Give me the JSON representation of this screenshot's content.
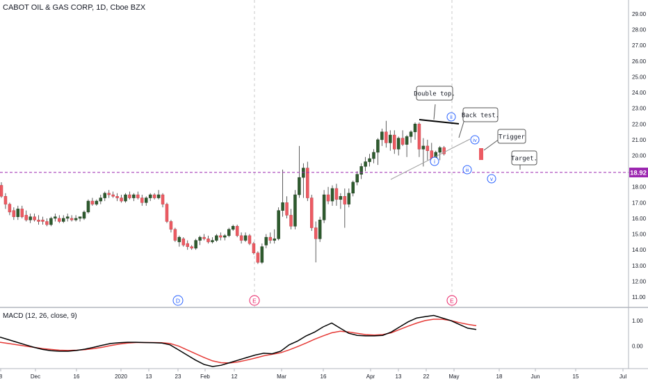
{
  "header": {
    "symbol": "CABOT OIL & GAS CORP, 1D, Cboe BZX"
  },
  "price_panel": {
    "price_tag": "18.92",
    "y_ticks": [
      "11.00",
      "12.00",
      "13.00",
      "14.00",
      "15.00",
      "16.00",
      "17.00",
      "18.00",
      "19.00",
      "20.00",
      "21.00",
      "22.00",
      "23.00",
      "24.00",
      "25.00",
      "26.00",
      "27.00",
      "28.00",
      "29.00"
    ],
    "annotations": [
      "Double top.",
      "Back test.",
      "Trigger",
      "Target."
    ],
    "wave_labels": [
      "i",
      "ii",
      "iii",
      "iv",
      "v"
    ],
    "event_markers": [
      {
        "label": "D",
        "x": "2020-01-22",
        "color": "#2962ff"
      },
      {
        "label": "E",
        "x": "2020-02-21",
        "color": "#e91e63"
      },
      {
        "label": "E",
        "x": "2020-04-30",
        "color": "#e91e63"
      }
    ]
  },
  "macd_panel": {
    "title": "MACD (12, 26, close, 9)",
    "y_ticks": [
      "1.00",
      "0.00"
    ]
  },
  "x_axis": {
    "ticks": [
      "8",
      "Dec",
      "16",
      "2020",
      "13",
      "23",
      "Feb",
      "12",
      "Mar",
      "16",
      "Apr",
      "13",
      "22",
      "May",
      "18",
      "Jun",
      "15",
      "Jul"
    ]
  },
  "colors": {
    "up": "#2e5b2e",
    "down": "#ec5b63",
    "macd_line": "#000000",
    "signal_line": "#e53935",
    "horizontal_line": "#9c27b0",
    "wave_label": "#2962ff",
    "marker_d": "#2962ff",
    "marker_e": "#e91e63"
  },
  "chart_data": {
    "type": "candlestick",
    "title": "CABOT OIL & GAS CORP, 1D, Cboe BZX",
    "price_range": [
      10.5,
      29.5
    ],
    "horizontal_line": 18.92,
    "candles": [
      [
        18.1,
        18.3,
        17.3,
        17.4
      ],
      [
        17.4,
        17.6,
        16.6,
        16.9
      ],
      [
        16.9,
        17.0,
        16.2,
        16.4
      ],
      [
        16.5,
        16.7,
        15.9,
        16.1
      ],
      [
        16.1,
        16.8,
        15.9,
        16.6
      ],
      [
        16.6,
        16.8,
        16.0,
        16.1
      ],
      [
        16.2,
        16.5,
        15.8,
        15.9
      ],
      [
        15.9,
        16.3,
        15.7,
        16.1
      ],
      [
        16.1,
        16.3,
        15.8,
        15.9
      ],
      [
        15.9,
        16.2,
        15.6,
        15.8
      ],
      [
        15.9,
        16.1,
        15.6,
        15.8
      ],
      [
        15.8,
        16.0,
        15.5,
        15.6
      ],
      [
        15.6,
        16.1,
        15.5,
        16.0
      ],
      [
        16.0,
        16.3,
        15.8,
        16.1
      ],
      [
        16.0,
        16.2,
        15.7,
        15.8
      ],
      [
        15.8,
        16.2,
        15.7,
        16.0
      ],
      [
        16.0,
        16.3,
        15.8,
        16.1
      ],
      [
        16.0,
        16.2,
        15.8,
        15.9
      ],
      [
        15.9,
        16.2,
        15.8,
        16.0
      ],
      [
        16.0,
        16.1,
        15.8,
        16.1
      ],
      [
        16.0,
        16.5,
        15.9,
        16.4
      ],
      [
        16.4,
        17.2,
        16.3,
        17.1
      ],
      [
        17.1,
        17.3,
        16.8,
        16.9
      ],
      [
        16.9,
        17.2,
        16.8,
        17.1
      ],
      [
        17.1,
        17.5,
        16.9,
        17.3
      ],
      [
        17.3,
        17.7,
        17.1,
        17.6
      ],
      [
        17.6,
        17.8,
        17.3,
        17.5
      ],
      [
        17.5,
        17.7,
        17.3,
        17.4
      ],
      [
        17.4,
        17.6,
        17.1,
        17.3
      ],
      [
        17.3,
        17.5,
        17.0,
        17.1
      ],
      [
        17.1,
        17.6,
        17.0,
        17.5
      ],
      [
        17.5,
        17.7,
        17.2,
        17.3
      ],
      [
        17.3,
        17.6,
        17.1,
        17.5
      ],
      [
        17.5,
        17.7,
        17.2,
        17.3
      ],
      [
        17.3,
        17.5,
        16.8,
        17.0
      ],
      [
        17.0,
        17.4,
        16.8,
        17.3
      ],
      [
        17.3,
        17.6,
        17.1,
        17.5
      ],
      [
        17.5,
        17.6,
        17.2,
        17.3
      ],
      [
        17.3,
        17.8,
        17.2,
        17.5
      ],
      [
        17.5,
        17.6,
        16.7,
        16.9
      ],
      [
        16.9,
        17.0,
        15.7,
        15.8
      ],
      [
        15.8,
        15.9,
        15.1,
        15.3
      ],
      [
        15.3,
        15.4,
        14.5,
        14.6
      ],
      [
        14.5,
        14.9,
        14.2,
        14.8
      ],
      [
        14.7,
        14.8,
        14.2,
        14.3
      ],
      [
        14.4,
        14.6,
        14.0,
        14.2
      ],
      [
        14.2,
        14.3,
        14.0,
        14.1
      ],
      [
        14.1,
        14.7,
        14.0,
        14.6
      ],
      [
        14.6,
        14.9,
        14.3,
        14.8
      ],
      [
        14.8,
        15.0,
        14.6,
        14.7
      ],
      [
        14.7,
        14.9,
        14.4,
        14.5
      ],
      [
        14.5,
        14.8,
        14.4,
        14.6
      ],
      [
        14.6,
        15.0,
        14.5,
        14.9
      ],
      [
        14.9,
        15.1,
        14.6,
        14.8
      ],
      [
        14.8,
        15.0,
        14.6,
        14.9
      ],
      [
        14.9,
        15.4,
        14.8,
        15.3
      ],
      [
        15.3,
        15.6,
        15.2,
        15.5
      ],
      [
        15.5,
        15.6,
        14.8,
        14.9
      ],
      [
        14.9,
        15.1,
        14.4,
        14.6
      ],
      [
        14.6,
        15.1,
        14.5,
        14.9
      ],
      [
        14.9,
        15.0,
        14.3,
        14.4
      ],
      [
        14.4,
        14.5,
        13.7,
        13.8
      ],
      [
        13.8,
        13.9,
        13.1,
        13.2
      ],
      [
        13.2,
        14.4,
        13.1,
        14.2
      ],
      [
        14.3,
        15.0,
        14.1,
        14.8
      ],
      [
        14.8,
        15.1,
        14.4,
        14.6
      ],
      [
        14.6,
        15.3,
        14.4,
        14.7
      ],
      [
        14.7,
        16.7,
        14.6,
        16.5
      ],
      [
        16.5,
        19.1,
        16.1,
        17.0
      ],
      [
        17.0,
        17.4,
        16.0,
        16.2
      ],
      [
        16.2,
        16.6,
        15.3,
        15.5
      ],
      [
        15.5,
        17.8,
        15.3,
        17.5
      ],
      [
        17.5,
        20.6,
        17.3,
        18.6
      ],
      [
        18.6,
        19.5,
        17.3,
        19.2
      ],
      [
        19.2,
        19.6,
        17.1,
        17.3
      ],
      [
        17.3,
        17.5,
        15.2,
        15.4
      ],
      [
        15.4,
        15.8,
        13.2,
        14.7
      ],
      [
        14.7,
        16.1,
        14.5,
        15.9
      ],
      [
        15.9,
        17.8,
        15.7,
        17.5
      ],
      [
        17.5,
        18.0,
        16.9,
        17.1
      ],
      [
        17.1,
        18.1,
        16.8,
        17.9
      ],
      [
        17.9,
        18.2,
        16.8,
        17.2
      ],
      [
        17.2,
        17.6,
        16.6,
        17.4
      ],
      [
        17.4,
        17.9,
        15.4,
        16.9
      ],
      [
        16.9,
        17.9,
        16.7,
        17.6
      ],
      [
        17.6,
        18.4,
        17.4,
        18.3
      ],
      [
        18.3,
        19.0,
        18.1,
        18.8
      ],
      [
        18.8,
        19.5,
        18.5,
        19.3
      ],
      [
        19.3,
        19.9,
        19.0,
        19.6
      ],
      [
        19.6,
        20.1,
        19.3,
        19.8
      ],
      [
        19.8,
        20.4,
        19.5,
        20.2
      ],
      [
        20.2,
        21.1,
        19.4,
        21.0
      ],
      [
        21.0,
        21.7,
        20.6,
        21.5
      ],
      [
        21.5,
        22.2,
        20.5,
        20.8
      ],
      [
        20.8,
        21.6,
        20.3,
        21.3
      ],
      [
        21.3,
        21.6,
        20.1,
        20.4
      ],
      [
        20.4,
        21.2,
        20.0,
        21.1
      ],
      [
        21.1,
        21.6,
        20.6,
        20.7
      ],
      [
        20.7,
        21.3,
        19.9,
        21.2
      ],
      [
        21.2,
        21.6,
        20.8,
        21.5
      ],
      [
        21.5,
        22.1,
        21.0,
        22.0
      ],
      [
        22.0,
        22.1,
        19.9,
        20.4
      ],
      [
        20.4,
        21.1,
        19.3,
        20.6
      ],
      [
        20.6,
        21.0,
        19.7,
        20.3
      ],
      [
        20.3,
        20.8,
        19.4,
        19.6
      ],
      [
        19.6,
        20.3,
        19.4,
        20.2
      ],
      [
        20.2,
        20.6,
        19.7,
        20.5
      ],
      [
        20.5,
        20.6,
        20.0,
        20.1
      ]
    ],
    "macd": [
      0.35,
      0.25,
      0.15,
      0.05,
      -0.05,
      -0.13,
      -0.18,
      -0.2,
      -0.2,
      -0.17,
      -0.12,
      -0.05,
      0.03,
      0.1,
      0.13,
      0.15,
      0.15,
      0.14,
      0.13,
      0.12,
      0.05,
      -0.15,
      -0.35,
      -0.55,
      -0.72,
      -0.8,
      -0.75,
      -0.65,
      -0.55,
      -0.45,
      -0.35,
      -0.28,
      -0.3,
      -0.2,
      0.05,
      0.2,
      0.4,
      0.55,
      0.75,
      0.9,
      0.7,
      0.5,
      0.42,
      0.4,
      0.4,
      0.42,
      0.55,
      0.75,
      0.95,
      1.1,
      1.15,
      1.2,
      1.1,
      1.0,
      0.85,
      0.7,
      0.65
    ],
    "signal": [
      0.15,
      0.1,
      0.05,
      0.0,
      -0.05,
      -0.1,
      -0.13,
      -0.16,
      -0.17,
      -0.16,
      -0.14,
      -0.1,
      -0.05,
      0.02,
      0.08,
      0.12,
      0.14,
      0.14,
      0.14,
      0.13,
      0.1,
      0.0,
      -0.15,
      -0.3,
      -0.45,
      -0.58,
      -0.65,
      -0.66,
      -0.62,
      -0.55,
      -0.47,
      -0.38,
      -0.32,
      -0.26,
      -0.15,
      -0.02,
      0.12,
      0.27,
      0.4,
      0.52,
      0.58,
      0.55,
      0.5,
      0.45,
      0.43,
      0.45,
      0.52,
      0.65,
      0.78,
      0.9,
      1.0,
      1.05,
      1.05,
      1.0,
      0.92,
      0.85,
      0.8
    ],
    "macd_range": [
      -0.8,
      1.35
    ]
  }
}
